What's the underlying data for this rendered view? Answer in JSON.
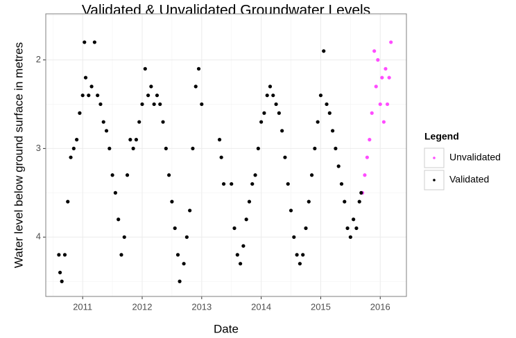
{
  "chart_data": {
    "type": "scatter",
    "title": "Validated & Unvalidated Groundwater Levels",
    "x_label": "Date",
    "y_label": "Water level below ground surface in metres",
    "legend_title": "Legend",
    "legend_position": "right",
    "y_reversed": true,
    "grid": true,
    "xlim": [
      2010.38,
      2016.44
    ],
    "xticks": [
      2011,
      2012,
      2013,
      2014,
      2015,
      2016
    ],
    "ylim": [
      1.48,
      4.67
    ],
    "yticks": [
      2,
      3,
      4
    ],
    "series": [
      {
        "name": "Unvalidated",
        "color": "#ff4cff",
        "x": [
          2015.7,
          2015.74,
          2015.78,
          2015.82,
          2015.86,
          2015.9,
          2015.93,
          2015.96,
          2016.0,
          2016.03,
          2016.06,
          2016.09,
          2016.12,
          2016.15,
          2016.18
        ],
        "values": [
          3.5,
          3.3,
          3.1,
          2.9,
          2.6,
          1.9,
          2.3,
          2.0,
          2.5,
          2.2,
          2.7,
          2.1,
          2.5,
          2.2,
          1.8
        ]
      },
      {
        "name": "Validated",
        "color": "#000000",
        "x": [
          2010.6,
          2010.62,
          2010.65,
          2010.7,
          2010.75,
          2010.8,
          2010.85,
          2010.9,
          2010.95,
          2011.0,
          2011.03,
          2011.05,
          2011.1,
          2011.15,
          2011.2,
          2011.25,
          2011.3,
          2011.35,
          2011.4,
          2011.45,
          2011.5,
          2011.55,
          2011.6,
          2011.65,
          2011.7,
          2011.75,
          2011.8,
          2011.85,
          2011.9,
          2011.95,
          2012.0,
          2012.05,
          2012.1,
          2012.15,
          2012.2,
          2012.25,
          2012.3,
          2012.35,
          2012.4,
          2012.45,
          2012.5,
          2012.55,
          2012.6,
          2012.63,
          2012.7,
          2012.75,
          2012.8,
          2012.85,
          2012.9,
          2012.95,
          2013.0,
          2013.3,
          2013.33,
          2013.37,
          2013.5,
          2013.55,
          2013.6,
          2013.65,
          2013.7,
          2013.75,
          2013.8,
          2013.85,
          2013.9,
          2013.95,
          2014.0,
          2014.05,
          2014.1,
          2014.15,
          2014.2,
          2014.25,
          2014.3,
          2014.35,
          2014.4,
          2014.45,
          2014.5,
          2014.55,
          2014.6,
          2014.65,
          2014.7,
          2014.75,
          2014.8,
          2014.85,
          2014.9,
          2014.95,
          2015.0,
          2015.05,
          2015.1,
          2015.15,
          2015.2,
          2015.25,
          2015.3,
          2015.35,
          2015.4,
          2015.45,
          2015.5,
          2015.55,
          2015.6,
          2015.65,
          2015.68
        ],
        "values": [
          4.2,
          4.4,
          4.5,
          4.2,
          3.6,
          3.1,
          3.0,
          2.9,
          2.6,
          2.4,
          1.8,
          2.2,
          2.4,
          2.3,
          1.8,
          2.4,
          2.5,
          2.7,
          2.8,
          3.0,
          3.3,
          3.5,
          3.8,
          4.2,
          4.0,
          3.3,
          2.9,
          3.0,
          2.9,
          2.7,
          2.5,
          2.1,
          2.4,
          2.3,
          2.5,
          2.4,
          2.5,
          2.7,
          3.0,
          3.3,
          3.6,
          3.9,
          4.2,
          4.5,
          4.3,
          4.0,
          3.7,
          3.0,
          2.3,
          2.1,
          2.5,
          2.9,
          3.1,
          3.4,
          3.4,
          3.9,
          4.2,
          4.3,
          4.1,
          3.8,
          3.6,
          3.4,
          3.3,
          3.0,
          2.7,
          2.6,
          2.4,
          2.3,
          2.4,
          2.5,
          2.6,
          2.8,
          3.1,
          3.4,
          3.7,
          4.0,
          4.2,
          4.3,
          4.2,
          3.9,
          3.6,
          3.3,
          3.0,
          2.7,
          2.4,
          1.9,
          2.5,
          2.6,
          2.8,
          3.0,
          3.2,
          3.4,
          3.6,
          3.9,
          4.0,
          3.8,
          3.9,
          3.6,
          3.5
        ]
      }
    ]
  }
}
